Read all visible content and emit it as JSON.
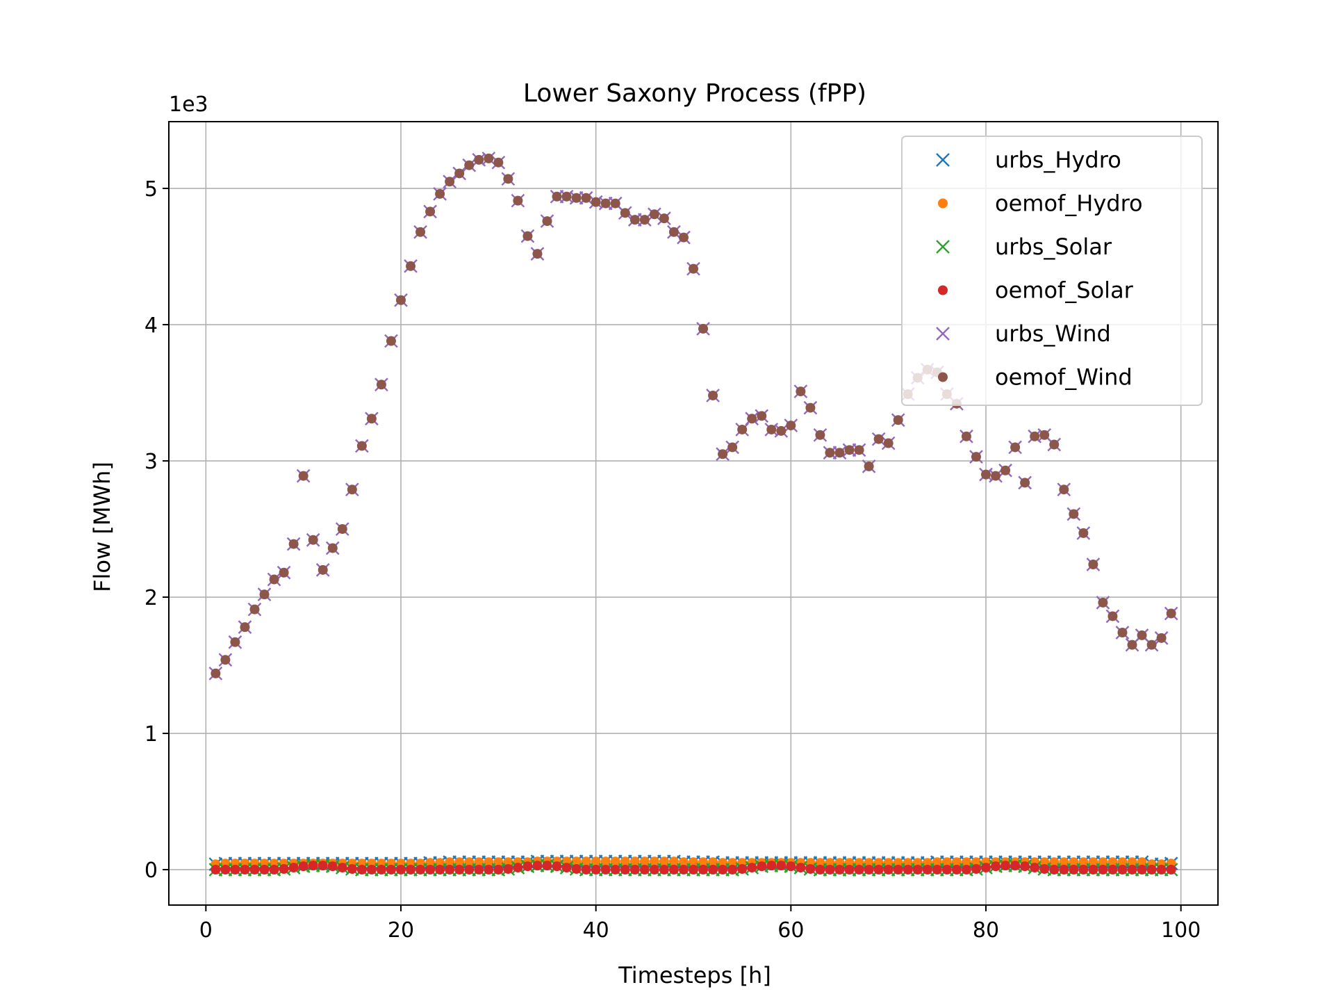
{
  "chart_data": {
    "type": "scatter",
    "title": "Lower Saxony Process (fPP)",
    "xlabel": "Timesteps [h]",
    "ylabel": "Flow [MWh]",
    "y_offset_text": "1e3",
    "y_scale_factor": 1000,
    "xlim": [
      -3.8,
      103.8
    ],
    "ylim": [
      -260,
      5490
    ],
    "xticks": [
      0,
      20,
      40,
      60,
      80,
      100
    ],
    "yticks": [
      0,
      1000,
      2000,
      3000,
      4000,
      5000
    ],
    "ytick_labels": [
      "0",
      "1",
      "2",
      "3",
      "4",
      "5"
    ],
    "grid": true,
    "legend_position": "top-right",
    "x": [
      1,
      2,
      3,
      4,
      5,
      6,
      7,
      8,
      9,
      10,
      11,
      12,
      13,
      14,
      15,
      16,
      17,
      18,
      19,
      20,
      21,
      22,
      23,
      24,
      25,
      26,
      27,
      28,
      29,
      30,
      31,
      32,
      33,
      34,
      35,
      36,
      37,
      38,
      39,
      40,
      41,
      42,
      43,
      44,
      45,
      46,
      47,
      48,
      49,
      50,
      51,
      52,
      53,
      54,
      55,
      56,
      57,
      58,
      59,
      60,
      61,
      62,
      63,
      64,
      65,
      66,
      67,
      68,
      69,
      70,
      71,
      72,
      73,
      74,
      75,
      76,
      77,
      78,
      79,
      80,
      81,
      82,
      83,
      84,
      85,
      86,
      87,
      88,
      89,
      90,
      91,
      92,
      93,
      94,
      95,
      96,
      97,
      98,
      99
    ],
    "series": [
      {
        "name": "urbs_Hydro",
        "marker": "x",
        "color": "#1f77b4",
        "values": [
          40,
          45,
          45,
          45,
          45,
          45,
          45,
          45,
          45,
          45,
          45,
          45,
          45,
          45,
          45,
          45,
          45,
          45,
          45,
          45,
          45,
          45,
          50,
          50,
          55,
          55,
          55,
          55,
          55,
          55,
          55,
          55,
          55,
          60,
          60,
          60,
          60,
          60,
          60,
          60,
          60,
          60,
          60,
          60,
          60,
          60,
          60,
          60,
          55,
          55,
          55,
          55,
          50,
          50,
          50,
          50,
          50,
          50,
          50,
          50,
          50,
          50,
          50,
          50,
          50,
          50,
          50,
          50,
          50,
          50,
          50,
          50,
          50,
          50,
          55,
          55,
          55,
          55,
          55,
          55,
          55,
          55,
          55,
          55,
          55,
          55,
          55,
          55,
          55,
          55,
          55,
          55,
          55,
          55,
          55,
          55,
          40,
          40,
          45
        ]
      },
      {
        "name": "oemof_Hydro",
        "marker": "dot",
        "color": "#ff7f0e",
        "values": [
          40,
          45,
          45,
          45,
          45,
          45,
          45,
          45,
          45,
          45,
          45,
          45,
          45,
          45,
          45,
          45,
          45,
          45,
          45,
          45,
          45,
          45,
          50,
          50,
          55,
          55,
          55,
          55,
          55,
          55,
          55,
          55,
          55,
          60,
          60,
          60,
          60,
          60,
          60,
          60,
          60,
          60,
          60,
          60,
          60,
          60,
          60,
          60,
          55,
          55,
          55,
          55,
          50,
          50,
          50,
          50,
          50,
          50,
          50,
          50,
          50,
          50,
          50,
          50,
          50,
          50,
          50,
          50,
          50,
          50,
          50,
          50,
          50,
          50,
          55,
          55,
          55,
          55,
          55,
          55,
          55,
          55,
          55,
          55,
          55,
          55,
          55,
          55,
          55,
          55,
          55,
          55,
          55,
          55,
          55,
          55,
          40,
          40,
          45
        ]
      },
      {
        "name": "urbs_Solar",
        "marker": "x",
        "color": "#2ca02c",
        "values": [
          0,
          0,
          0,
          0,
          0,
          0,
          0,
          5,
          15,
          25,
          30,
          30,
          25,
          15,
          5,
          0,
          0,
          0,
          0,
          0,
          0,
          0,
          0,
          0,
          0,
          0,
          0,
          0,
          0,
          0,
          5,
          15,
          25,
          30,
          30,
          25,
          15,
          5,
          0,
          0,
          0,
          0,
          0,
          0,
          0,
          0,
          0,
          0,
          0,
          0,
          0,
          0,
          0,
          0,
          5,
          15,
          25,
          30,
          30,
          25,
          15,
          5,
          0,
          0,
          0,
          0,
          0,
          0,
          0,
          0,
          0,
          0,
          0,
          0,
          0,
          0,
          0,
          0,
          5,
          15,
          25,
          30,
          30,
          25,
          15,
          5,
          0,
          0,
          0,
          0,
          0,
          0,
          0,
          0,
          0,
          0,
          0,
          0,
          0
        ]
      },
      {
        "name": "oemof_Solar",
        "marker": "dot",
        "color": "#d62728",
        "values": [
          0,
          0,
          0,
          0,
          0,
          0,
          0,
          5,
          15,
          25,
          30,
          30,
          25,
          15,
          5,
          0,
          0,
          0,
          0,
          0,
          0,
          0,
          0,
          0,
          0,
          0,
          0,
          0,
          0,
          0,
          5,
          15,
          25,
          30,
          30,
          25,
          15,
          5,
          0,
          0,
          0,
          0,
          0,
          0,
          0,
          0,
          0,
          0,
          0,
          0,
          0,
          0,
          0,
          0,
          5,
          15,
          25,
          30,
          30,
          25,
          15,
          5,
          0,
          0,
          0,
          0,
          0,
          0,
          0,
          0,
          0,
          0,
          0,
          0,
          0,
          0,
          0,
          0,
          5,
          15,
          25,
          30,
          30,
          25,
          15,
          5,
          0,
          0,
          0,
          0,
          0,
          0,
          0,
          0,
          0,
          0,
          0,
          0,
          0
        ]
      },
      {
        "name": "urbs_Wind",
        "marker": "x",
        "color": "#9467bd",
        "values": [
          1440,
          1540,
          1670,
          1780,
          1910,
          2020,
          2130,
          2180,
          2390,
          2890,
          2420,
          2200,
          2360,
          2500,
          2790,
          3110,
          3310,
          3560,
          3880,
          4180,
          4430,
          4680,
          4830,
          4960,
          5050,
          5110,
          5170,
          5210,
          5220,
          5190,
          5070,
          4910,
          4650,
          4520,
          4760,
          4940,
          4940,
          4930,
          4930,
          4900,
          4890,
          4890,
          4820,
          4770,
          4770,
          4810,
          4780,
          4680,
          4640,
          4410,
          3970,
          3480,
          3050,
          3100,
          3230,
          3310,
          3330,
          3230,
          3220,
          3260,
          3510,
          3390,
          3190,
          3060,
          3060,
          3080,
          3080,
          2960,
          3160,
          3130,
          3300,
          3490,
          3610,
          3670,
          3650,
          3490,
          3420,
          3180,
          3030,
          2900,
          2890,
          2930,
          3100,
          2840,
          3180,
          3190,
          3120,
          2790,
          2610,
          2470,
          2240,
          1960,
          1860,
          1740,
          1650,
          1720,
          1650,
          1700,
          1880
        ]
      },
      {
        "name": "oemof_Wind",
        "marker": "dot",
        "color": "#8c564b",
        "values": [
          1440,
          1540,
          1670,
          1780,
          1910,
          2020,
          2130,
          2180,
          2390,
          2890,
          2420,
          2200,
          2360,
          2500,
          2790,
          3110,
          3310,
          3560,
          3880,
          4180,
          4430,
          4680,
          4830,
          4960,
          5050,
          5110,
          5170,
          5210,
          5220,
          5190,
          5070,
          4910,
          4650,
          4520,
          4760,
          4940,
          4940,
          4930,
          4930,
          4900,
          4890,
          4890,
          4820,
          4770,
          4770,
          4810,
          4780,
          4680,
          4640,
          4410,
          3970,
          3480,
          3050,
          3100,
          3230,
          3310,
          3330,
          3230,
          3220,
          3260,
          3510,
          3390,
          3190,
          3060,
          3060,
          3080,
          3080,
          2960,
          3160,
          3130,
          3300,
          3490,
          3610,
          3670,
          3650,
          3490,
          3420,
          3180,
          3030,
          2900,
          2890,
          2930,
          3100,
          2840,
          3180,
          3190,
          3120,
          2790,
          2610,
          2470,
          2240,
          1960,
          1860,
          1740,
          1650,
          1720,
          1650,
          1700,
          1880
        ]
      }
    ]
  }
}
